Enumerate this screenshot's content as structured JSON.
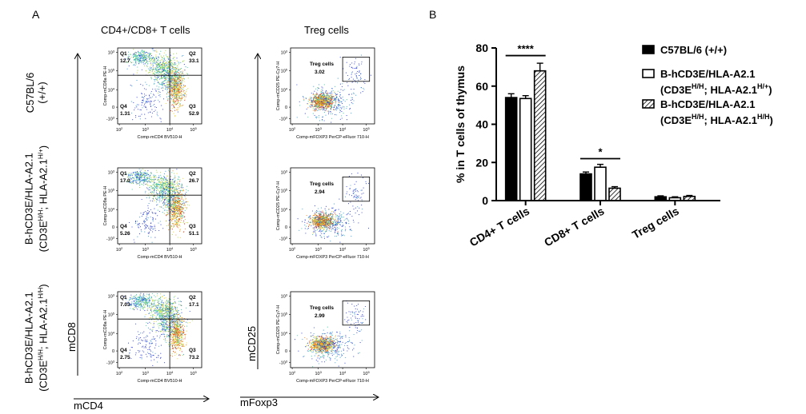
{
  "panel_a": {
    "letter": "A",
    "col_titles": [
      "CD4+/CD8+ T cells",
      "Treg cells"
    ],
    "rows": [
      {
        "label_line1": "C57BL/6",
        "label_line2": "(+/+)",
        "q1": "12.7",
        "q2": "33.1",
        "q3": "52.9",
        "q4": "1.31",
        "treg": "3.02"
      },
      {
        "label_line1": "B-hCD3E/HLA-A2.1",
        "label_line2": "(CD3E",
        "label_sup1": "H/H",
        "label_mid": "; HLA-A2.1",
        "label_sup2": "H/+",
        "label_end": ")",
        "q1": "17.0",
        "q2": "26.7",
        "q3": "51.1",
        "q4": "5.26",
        "treg": "2.94"
      },
      {
        "label_line1": "B-hCD3E/HLA-A2.1",
        "label_line2": "(CD3E",
        "label_sup1": "H/H",
        "label_mid": "; HLA-A2.1",
        "label_sup2": "H/H",
        "label_end": ")",
        "q1": "7.03",
        "q2": "17.1",
        "q3": "73.2",
        "q4": "2.75",
        "treg": "2.99"
      }
    ],
    "quadrant_names": [
      "Q1",
      "Q2",
      "Q3",
      "Q4"
    ],
    "gate_name": "Treg cells",
    "cd_xaxis": "Comp-mCD4 BV510-H",
    "cd_yaxis": "Comp-mCD8a PE-H",
    "treg_xaxis": "Comp-mFOXP3 PerCP-eFluor 710-H",
    "treg_yaxis": "Comp-mCD25 PE-Cy7-H",
    "ticks": [
      "10",
      "10",
      "10",
      "10",
      "-10"
    ],
    "tick_exps": [
      "2",
      "3",
      "4",
      "5",
      "3"
    ],
    "big_axis": {
      "y1": "mCD8",
      "x1": "mCD4",
      "y2": "mCD25",
      "x2": "mFoxp3"
    }
  },
  "panel_b": {
    "letter": "B",
    "legend": [
      {
        "line1": "C57BL/6 (+/+)"
      },
      {
        "line1": "B-hCD3E/HLA-A2.1",
        "line2": "(CD3E",
        "sup1": "H/H",
        "mid": "; HLA-A2.1",
        "sup2": "H/+",
        "end": ")"
      },
      {
        "line1": "B-hCD3E/HLA-A2.1",
        "line2": "(CD3E",
        "sup1": "H/H",
        "mid": "; HLA-A2.1",
        "sup2": "H/H",
        "end": ")"
      }
    ],
    "significance": [
      "****",
      "*"
    ]
  },
  "chart_data": {
    "type": "bar",
    "ylabel": "% in T cells of thymus",
    "ylim": [
      0,
      80
    ],
    "yticks": [
      0,
      20,
      40,
      60,
      80
    ],
    "categories": [
      "CD4+ T cells",
      "CD8+ T cells",
      "Treg cells"
    ],
    "series": [
      {
        "name": "C57BL/6 (+/+)",
        "fill": "#000000",
        "values": [
          54,
          14,
          2
        ],
        "errors": [
          2,
          1,
          0.5
        ]
      },
      {
        "name": "B-hCD3E/HLA-A2.1 (CD3EH/H; HLA-A2.1H/+)",
        "fill": "#ffffff",
        "values": [
          53.5,
          17.5,
          1.5
        ],
        "errors": [
          1.5,
          1.5,
          0.5
        ]
      },
      {
        "name": "B-hCD3E/HLA-A2.1 (CD3EH/H; HLA-A2.1H/H)",
        "fill": "hatch",
        "values": [
          68,
          6.5,
          2.2
        ],
        "errors": [
          4,
          0.8,
          0.5
        ]
      }
    ],
    "legend_position": "top-right"
  }
}
